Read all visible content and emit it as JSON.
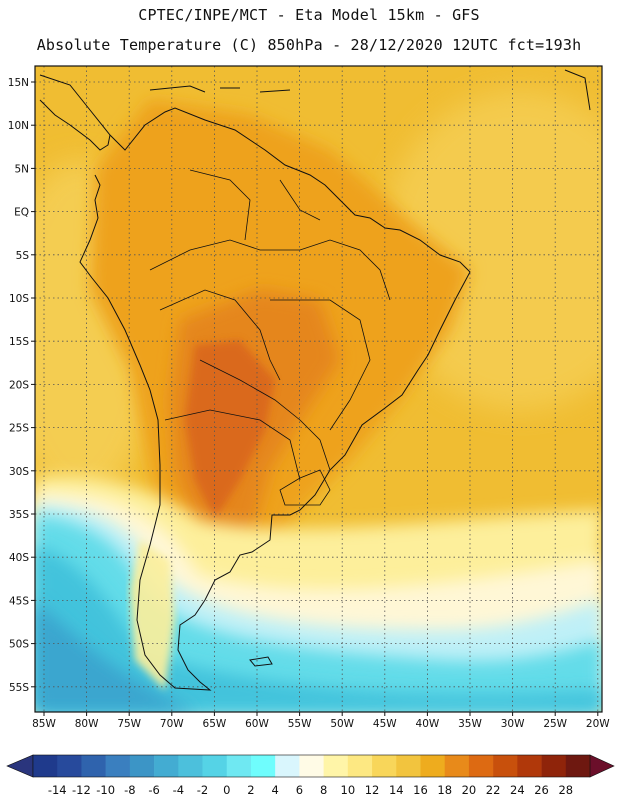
{
  "header": {
    "title_line1": "CPTEC/INPE/MCT -  Eta Model 15km - GFS",
    "title_line2": "Absolute Temperature (C) 850hPa - 28/12/2020 12UTC fct=193h"
  },
  "axes": {
    "lat_labels": [
      "15N",
      "10N",
      "5N",
      "EQ",
      "5S",
      "10S",
      "15S",
      "20S",
      "25S",
      "30S",
      "35S",
      "40S",
      "45S",
      "50S",
      "55S"
    ],
    "lon_labels": [
      "85W",
      "80W",
      "75W",
      "70W",
      "65W",
      "60W",
      "55W",
      "50W",
      "45W",
      "40W",
      "35W",
      "30W",
      "25W",
      "20W"
    ]
  },
  "colorbar": {
    "labels": [
      "-14",
      "-12",
      "-10",
      "-8",
      "-6",
      "-4",
      "-2",
      "0",
      "2",
      "4",
      "6",
      "8",
      "10",
      "12",
      "14",
      "16",
      "18",
      "20",
      "22",
      "24",
      "26",
      "28"
    ],
    "colors": [
      "#1f3a8c",
      "#274a9c",
      "#2f63ad",
      "#3a7fbf",
      "#3c95c6",
      "#43acd2",
      "#4cc0dc",
      "#55d3e6",
      "#6fe8f2",
      "#6ffdfd",
      "#d9f6fd",
      "#fffbe6",
      "#fff5a8",
      "#fde882",
      "#f8d65a",
      "#f2c43e",
      "#eeac1e",
      "#e88a1a",
      "#dd6a12",
      "#c8500c",
      "#b0380a",
      "#8f240a",
      "#6e1810"
    ],
    "under_color": "#2a357d",
    "over_color": "#6b0f2a"
  },
  "map_colors": {
    "ocean_warm": "#f0bd32",
    "ocean_mid": "#f5cf55",
    "land_base": "#eea21e",
    "land_hot": "#e5861a",
    "land_hotter": "#d9651a",
    "cool_1": "#fdef9b",
    "cool_2": "#fff7d6",
    "cold_1": "#bff0f7",
    "cold_2": "#64dce9",
    "cold_3": "#43c3dc",
    "cold_4": "#3aa6cf",
    "grid": "#555555"
  }
}
